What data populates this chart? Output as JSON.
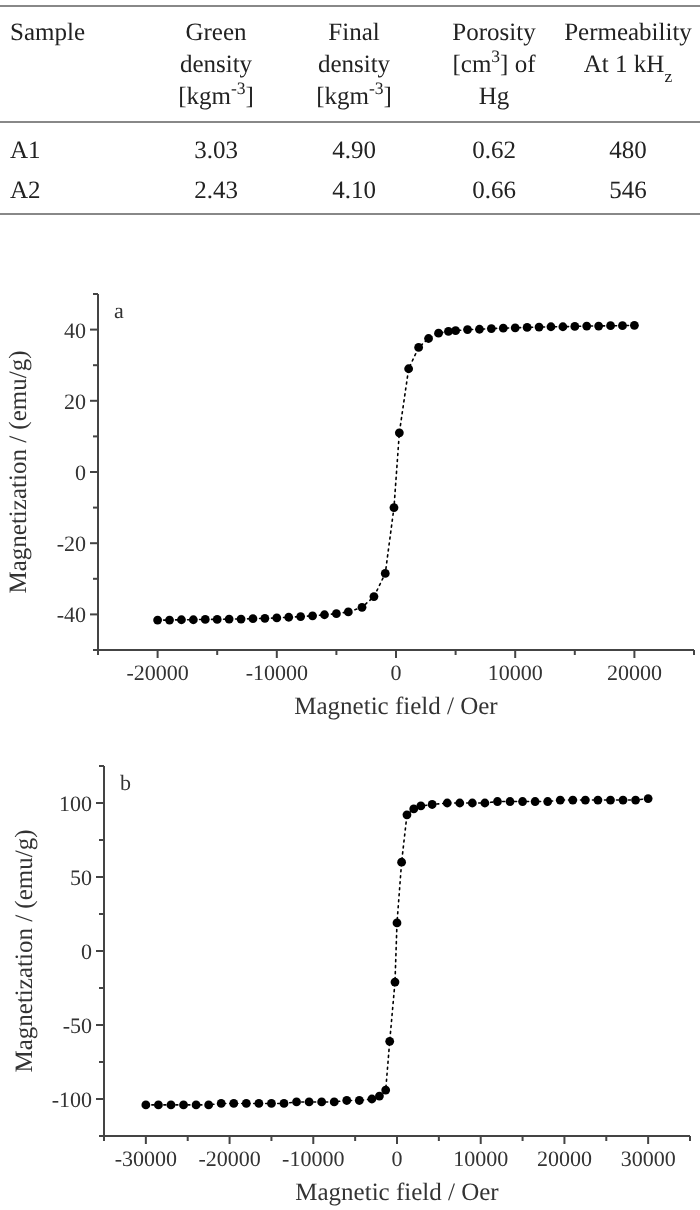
{
  "chart_data": [
    {
      "type": "other",
      "categories": [
        "Sample",
        "Green\ndensity\n[kgm$^{-3}$]",
        "Final\ndensity\n[kgm$^{-3}$]",
        "Porosity\n[cm$^{3}$] of\nHg",
        "Permeability\nAt 1 kH$_{z}$"
      ],
      "y_categories": [
        "A1",
        "A2"
      ],
      "cell_labels": [
        [
          "3.03",
          "4.90",
          "0.62",
          "480"
        ],
        [
          "2.43",
          "4.10",
          "0.66",
          "546"
        ]
      ]
    },
    {
      "type": "line",
      "xlabel": "Magnetic field / Oer",
      "ylabel": "Magnetization / (emu/g)",
      "annotations": [
        "a"
      ],
      "xlim": [
        -25000,
        25000
      ],
      "xticks": [
        {
          "value": -25000,
          "label": null
        },
        -20000,
        {
          "value": -15000,
          "label": null
        },
        -10000,
        {
          "value": -5000,
          "label": null
        },
        0,
        {
          "value": 5000,
          "label": null
        },
        10000,
        {
          "value": 15000,
          "label": null
        },
        20000,
        {
          "value": 25000,
          "label": null
        }
      ],
      "ylim": [
        -50,
        50
      ],
      "yticks": [
        {
          "value": -50,
          "label": null
        },
        -40,
        {
          "value": -30,
          "label": null
        },
        -20,
        {
          "value": -10,
          "label": null
        },
        0,
        {
          "value": 10,
          "label": null
        },
        20,
        {
          "value": 30,
          "label": null
        },
        40,
        {
          "value": 50,
          "label": null
        }
      ],
      "grid": false,
      "marker": "circle",
      "line_style": "dotted",
      "series": [
        {
          "color": "#000000",
          "x": [
            -20000,
            -19000,
            -18000,
            -17000,
            -16000,
            -15000,
            -14000,
            -13000,
            -12000,
            -11000,
            -10000,
            -9000,
            -8000,
            -7000,
            -6000,
            -5000,
            -4000,
            -2850,
            -1850,
            -900,
            -170,
            280,
            1060,
            1900,
            2730,
            3570,
            4400,
            5000,
            6000,
            7000,
            8000,
            9000,
            10000,
            11000,
            12000,
            13000,
            14000,
            15000,
            16000,
            17000,
            18000,
            19000,
            20000
          ],
          "values": [
            -41.6,
            -41.6,
            -41.5,
            -41.5,
            -41.4,
            -41.4,
            -41.3,
            -41.3,
            -41.2,
            -41.1,
            -41,
            -40.8,
            -40.6,
            -40.4,
            -40.1,
            -39.8,
            -39.3,
            -38,
            -35,
            -28.5,
            -10,
            11,
            29,
            35,
            37.5,
            39,
            39.5,
            39.7,
            40,
            40.1,
            40.3,
            40.4,
            40.5,
            40.6,
            40.7,
            40.8,
            40.8,
            40.9,
            41,
            41,
            41.1,
            41.1,
            41.2
          ]
        }
      ]
    },
    {
      "type": "line",
      "xlabel": "Magnetic field / Oer",
      "ylabel": "Magnetization / (emu/g)",
      "annotations": [
        "b"
      ],
      "xlim": [
        -35000,
        35000
      ],
      "xticks": [
        {
          "value": -35000,
          "label": null
        },
        -30000,
        {
          "value": -25000,
          "label": null
        },
        -20000,
        {
          "value": -15000,
          "label": null
        },
        -10000,
        {
          "value": -5000,
          "label": null
        },
        0,
        {
          "value": 5000,
          "label": null
        },
        10000,
        {
          "value": 15000,
          "label": null
        },
        20000,
        {
          "value": 25000,
          "label": null
        },
        30000,
        {
          "value": 35000,
          "label": null
        }
      ],
      "ylim": [
        -125,
        125
      ],
      "yticks": [
        {
          "value": -125,
          "label": null
        },
        -100,
        {
          "value": -75,
          "label": null
        },
        -50,
        {
          "value": -25,
          "label": null
        },
        0,
        {
          "value": 25,
          "label": null
        },
        50,
        {
          "value": 75,
          "label": null
        },
        100,
        {
          "value": 125,
          "label": null
        }
      ],
      "grid": false,
      "marker": "circle",
      "line_style": "dotted",
      "series": [
        {
          "color": "#000000",
          "x": [
            -30000,
            -28500,
            -27000,
            -25500,
            -24000,
            -22500,
            -21000,
            -19500,
            -18000,
            -16500,
            -15000,
            -13500,
            -12000,
            -10500,
            -9000,
            -7500,
            -6000,
            -4500,
            -3000,
            -2100,
            -1350,
            -870,
            -240,
            0,
            550,
            1190,
            2000,
            2850,
            4200,
            6000,
            7500,
            9000,
            10500,
            12000,
            13500,
            15000,
            16500,
            18000,
            19500,
            21000,
            22500,
            24000,
            25500,
            27000,
            28500,
            30000
          ],
          "values": [
            -104,
            -104,
            -104,
            -104,
            -104,
            -104,
            -103,
            -103,
            -103,
            -103,
            -103,
            -103,
            -102,
            -102,
            -102,
            -102,
            -101,
            -101,
            -100,
            -98,
            -94,
            -61,
            -21,
            19,
            60,
            92,
            96,
            98,
            99,
            100,
            100,
            100,
            100,
            101,
            101,
            101,
            101,
            101,
            102,
            102,
            102,
            102,
            102,
            102,
            102,
            103
          ]
        }
      ]
    }
  ]
}
